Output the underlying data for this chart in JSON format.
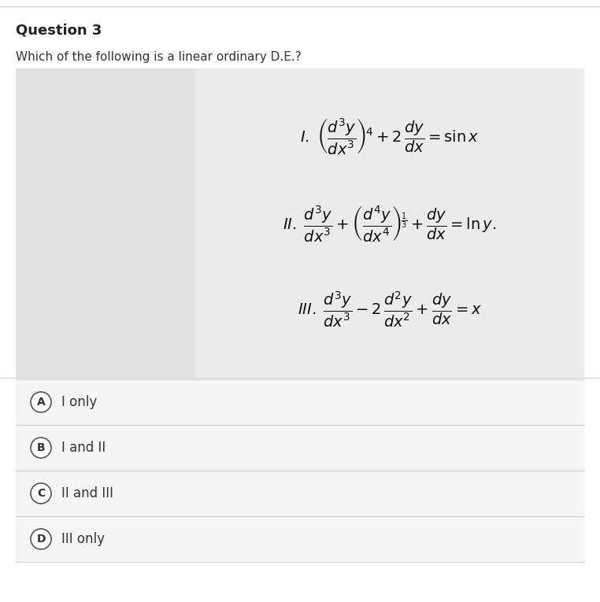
{
  "title": "Question 3",
  "subtitle": "Which of the following is a linear ordinary D.E.?",
  "white_bg": "#ffffff",
  "light_gray": "#f0f0f0",
  "option_row_bg": "#f5f5f5",
  "divider_color": "#d0d0d0",
  "left_panel_color": "#e2e2e2",
  "right_panel_color": "#ebebeb",
  "title_fontsize": 13,
  "subtitle_fontsize": 11,
  "eq1": "I.\\;\\left(\\dfrac{d^3y}{dx^3}\\right)^{\\!4} + 2\\,\\dfrac{dy}{dx} = \\sin x",
  "eq2": "II.\\;\\dfrac{d^3y}{dx^3} + \\left(\\dfrac{d^4y}{dx^4}\\right)^{\\!\\frac{1}{3}} + \\dfrac{dy}{dx} = \\ln y.",
  "eq3": "III.\\;\\dfrac{d^3y}{dx^3} - 2\\,\\dfrac{d^2y}{dx^2} + \\dfrac{dy}{dx} = x",
  "option_labels": [
    "A",
    "B",
    "C",
    "D"
  ],
  "option_texts": [
    "I only",
    "I and II",
    "II and III",
    "III only"
  ],
  "option_fontsize": 12,
  "eq_fontsize": 14
}
